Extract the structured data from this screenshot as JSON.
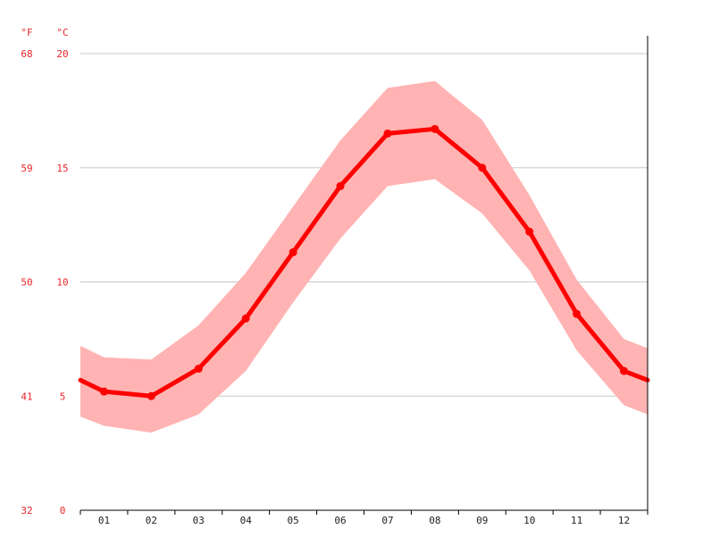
{
  "colors": {
    "line": "#ff0000",
    "band": "#ffb3b3",
    "grid": "#c8c8c8",
    "axis": "#000000",
    "tick_label_temp": "#e8262a",
    "tick_label_month": "#222222"
  },
  "chart_data": {
    "type": "line",
    "units": {
      "fahrenheit": "°F",
      "celsius": "°C"
    },
    "categories": [
      "01",
      "02",
      "03",
      "04",
      "05",
      "06",
      "07",
      "08",
      "09",
      "10",
      "11",
      "12"
    ],
    "ylim": [
      0,
      20
    ],
    "yticks_celsius": [
      "0",
      "5",
      "10",
      "15",
      "20"
    ],
    "yticks_fahrenheit": [
      "32",
      "41",
      "50",
      "59",
      "68"
    ],
    "grid": true,
    "series": [
      {
        "values": [
          5.2,
          5.0,
          6.2,
          8.4,
          11.3,
          14.2,
          16.5,
          16.7,
          15.0,
          12.2,
          8.6,
          6.1
        ]
      }
    ],
    "band": {
      "upper": [
        6.7,
        6.6,
        8.1,
        10.4,
        13.3,
        16.2,
        18.5,
        18.8,
        17.1,
        13.8,
        10.1,
        7.5
      ],
      "lower": [
        3.7,
        3.4,
        4.2,
        6.1,
        9.1,
        11.9,
        14.2,
        14.5,
        13.0,
        10.5,
        7.0,
        4.6
      ]
    },
    "edge_values": {
      "start": {
        "value": 5.7,
        "upper": 7.2,
        "lower": 4.1
      },
      "end": {
        "value": 5.7,
        "upper": 7.1,
        "lower": 4.2
      }
    }
  }
}
